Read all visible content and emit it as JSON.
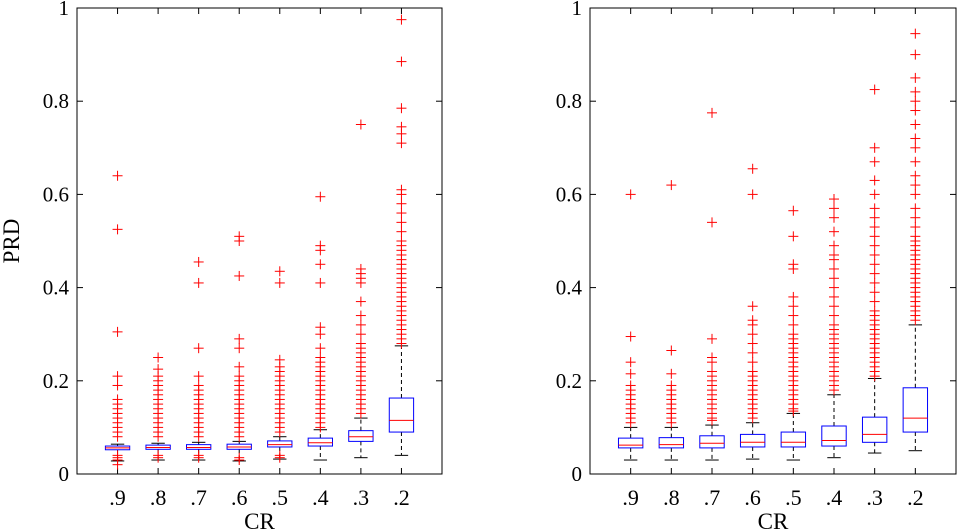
{
  "chart_data": [
    {
      "type": "box",
      "panel": "left",
      "xlabel": "CR",
      "ylabel": "PRD",
      "ylim": [
        0,
        1
      ],
      "yticks": [
        0,
        0.2,
        0.4,
        0.6,
        0.8,
        1
      ],
      "ytick_labels": [
        "0",
        "0.2",
        "0.4",
        "0.6",
        "0.8",
        "1"
      ],
      "categories": [
        ".9",
        ".8",
        ".7",
        ".6",
        ".5",
        ".4",
        ".3",
        ".2"
      ],
      "boxes": [
        {
          "q1": 0.052,
          "median": 0.056,
          "q3": 0.06,
          "lower": 0.028,
          "upper": 0.064,
          "outliers": [
            0.02,
            0.03,
            0.035,
            0.04,
            0.08,
            0.09,
            0.1,
            0.11,
            0.12,
            0.13,
            0.14,
            0.15,
            0.16,
            0.19,
            0.21,
            0.305,
            0.525,
            0.64
          ]
        },
        {
          "q1": 0.053,
          "median": 0.057,
          "q3": 0.062,
          "lower": 0.03,
          "upper": 0.066,
          "outliers": [
            0.035,
            0.04,
            0.08,
            0.09,
            0.1,
            0.11,
            0.12,
            0.13,
            0.14,
            0.15,
            0.16,
            0.17,
            0.18,
            0.19,
            0.2,
            0.21,
            0.225,
            0.25
          ]
        },
        {
          "q1": 0.053,
          "median": 0.057,
          "q3": 0.063,
          "lower": 0.03,
          "upper": 0.068,
          "outliers": [
            0.035,
            0.04,
            0.08,
            0.09,
            0.1,
            0.11,
            0.12,
            0.13,
            0.14,
            0.15,
            0.16,
            0.17,
            0.18,
            0.19,
            0.21,
            0.27,
            0.41,
            0.455
          ]
        },
        {
          "q1": 0.053,
          "median": 0.058,
          "q3": 0.064,
          "lower": 0.028,
          "upper": 0.07,
          "outliers": [
            0.03,
            0.035,
            0.08,
            0.09,
            0.1,
            0.11,
            0.12,
            0.13,
            0.14,
            0.15,
            0.16,
            0.17,
            0.18,
            0.19,
            0.2,
            0.21,
            0.23,
            0.27,
            0.29,
            0.425,
            0.5,
            0.51
          ]
        },
        {
          "q1": 0.058,
          "median": 0.063,
          "q3": 0.071,
          "lower": 0.032,
          "upper": 0.08,
          "outliers": [
            0.035,
            0.04,
            0.09,
            0.1,
            0.11,
            0.12,
            0.13,
            0.14,
            0.15,
            0.16,
            0.17,
            0.18,
            0.19,
            0.2,
            0.21,
            0.22,
            0.23,
            0.245,
            0.41,
            0.435
          ]
        },
        {
          "q1": 0.06,
          "median": 0.067,
          "q3": 0.077,
          "lower": 0.03,
          "upper": 0.095,
          "outliers": [
            0.1,
            0.11,
            0.12,
            0.13,
            0.14,
            0.15,
            0.16,
            0.17,
            0.18,
            0.19,
            0.2,
            0.21,
            0.22,
            0.23,
            0.24,
            0.25,
            0.27,
            0.3,
            0.315,
            0.41,
            0.45,
            0.48,
            0.49,
            0.595
          ]
        },
        {
          "q1": 0.07,
          "median": 0.08,
          "q3": 0.093,
          "lower": 0.035,
          "upper": 0.12,
          "outliers": [
            0.13,
            0.14,
            0.15,
            0.16,
            0.17,
            0.18,
            0.19,
            0.2,
            0.21,
            0.22,
            0.23,
            0.24,
            0.25,
            0.26,
            0.27,
            0.28,
            0.3,
            0.32,
            0.34,
            0.37,
            0.41,
            0.42,
            0.43,
            0.44,
            0.75
          ]
        },
        {
          "q1": 0.09,
          "median": 0.115,
          "q3": 0.163,
          "lower": 0.04,
          "upper": 0.275,
          "outliers": [
            0.28,
            0.29,
            0.3,
            0.31,
            0.32,
            0.33,
            0.34,
            0.35,
            0.36,
            0.37,
            0.38,
            0.39,
            0.4,
            0.41,
            0.42,
            0.43,
            0.44,
            0.45,
            0.46,
            0.47,
            0.48,
            0.49,
            0.5,
            0.52,
            0.54,
            0.56,
            0.58,
            0.6,
            0.61,
            0.71,
            0.73,
            0.745,
            0.785,
            0.885,
            0.975
          ]
        }
      ]
    },
    {
      "type": "box",
      "panel": "right",
      "xlabel": "CR",
      "ylabel": "",
      "ylim": [
        0,
        1
      ],
      "yticks": [
        0,
        0.2,
        0.4,
        0.6,
        0.8,
        1
      ],
      "ytick_labels": [
        "0",
        "0.2",
        "0.4",
        "0.6",
        "0.8",
        "1"
      ],
      "categories": [
        ".9",
        ".8",
        ".7",
        ".6",
        ".5",
        ".4",
        ".3",
        ".2"
      ],
      "boxes": [
        {
          "q1": 0.056,
          "median": 0.062,
          "q3": 0.077,
          "lower": 0.03,
          "upper": 0.1,
          "outliers": [
            0.11,
            0.12,
            0.13,
            0.14,
            0.15,
            0.16,
            0.17,
            0.18,
            0.19,
            0.215,
            0.24,
            0.295,
            0.6
          ]
        },
        {
          "q1": 0.056,
          "median": 0.063,
          "q3": 0.078,
          "lower": 0.03,
          "upper": 0.1,
          "outliers": [
            0.11,
            0.12,
            0.13,
            0.14,
            0.15,
            0.16,
            0.17,
            0.18,
            0.19,
            0.215,
            0.265,
            0.62
          ]
        },
        {
          "q1": 0.056,
          "median": 0.066,
          "q3": 0.082,
          "lower": 0.03,
          "upper": 0.105,
          "outliers": [
            0.115,
            0.12,
            0.13,
            0.14,
            0.15,
            0.16,
            0.17,
            0.18,
            0.19,
            0.2,
            0.21,
            0.22,
            0.24,
            0.25,
            0.29,
            0.54,
            0.775
          ]
        },
        {
          "q1": 0.058,
          "median": 0.068,
          "q3": 0.085,
          "lower": 0.032,
          "upper": 0.11,
          "outliers": [
            0.12,
            0.13,
            0.14,
            0.15,
            0.16,
            0.17,
            0.18,
            0.19,
            0.2,
            0.21,
            0.22,
            0.24,
            0.26,
            0.28,
            0.3,
            0.32,
            0.33,
            0.36,
            0.6,
            0.655
          ]
        },
        {
          "q1": 0.058,
          "median": 0.068,
          "q3": 0.09,
          "lower": 0.03,
          "upper": 0.13,
          "outliers": [
            0.135,
            0.14,
            0.15,
            0.16,
            0.17,
            0.18,
            0.19,
            0.2,
            0.21,
            0.22,
            0.23,
            0.24,
            0.25,
            0.26,
            0.27,
            0.28,
            0.29,
            0.3,
            0.32,
            0.34,
            0.36,
            0.38,
            0.44,
            0.45,
            0.51,
            0.565
          ]
        },
        {
          "q1": 0.06,
          "median": 0.072,
          "q3": 0.103,
          "lower": 0.035,
          "upper": 0.17,
          "outliers": [
            0.18,
            0.19,
            0.2,
            0.21,
            0.22,
            0.23,
            0.24,
            0.25,
            0.26,
            0.27,
            0.28,
            0.29,
            0.3,
            0.31,
            0.32,
            0.34,
            0.36,
            0.38,
            0.4,
            0.42,
            0.44,
            0.46,
            0.47,
            0.49,
            0.52,
            0.55,
            0.57,
            0.59
          ]
        },
        {
          "q1": 0.068,
          "median": 0.085,
          "q3": 0.122,
          "lower": 0.045,
          "upper": 0.205,
          "outliers": [
            0.21,
            0.22,
            0.23,
            0.24,
            0.25,
            0.26,
            0.27,
            0.28,
            0.29,
            0.3,
            0.31,
            0.32,
            0.33,
            0.34,
            0.35,
            0.37,
            0.39,
            0.41,
            0.43,
            0.45,
            0.47,
            0.49,
            0.51,
            0.53,
            0.55,
            0.57,
            0.6,
            0.63,
            0.67,
            0.7,
            0.825
          ]
        },
        {
          "q1": 0.09,
          "median": 0.12,
          "q3": 0.185,
          "lower": 0.05,
          "upper": 0.32,
          "outliers": [
            0.33,
            0.34,
            0.35,
            0.36,
            0.37,
            0.38,
            0.39,
            0.4,
            0.41,
            0.42,
            0.43,
            0.44,
            0.45,
            0.46,
            0.47,
            0.48,
            0.49,
            0.5,
            0.51,
            0.53,
            0.55,
            0.57,
            0.6,
            0.62,
            0.64,
            0.67,
            0.7,
            0.72,
            0.75,
            0.78,
            0.8,
            0.82,
            0.85,
            0.9,
            0.945
          ]
        }
      ]
    }
  ],
  "colors": {
    "box": "#0000ff",
    "median": "#ff0000",
    "whisker": "#000000",
    "outlier": "#ff0000",
    "axis": "#000000"
  }
}
